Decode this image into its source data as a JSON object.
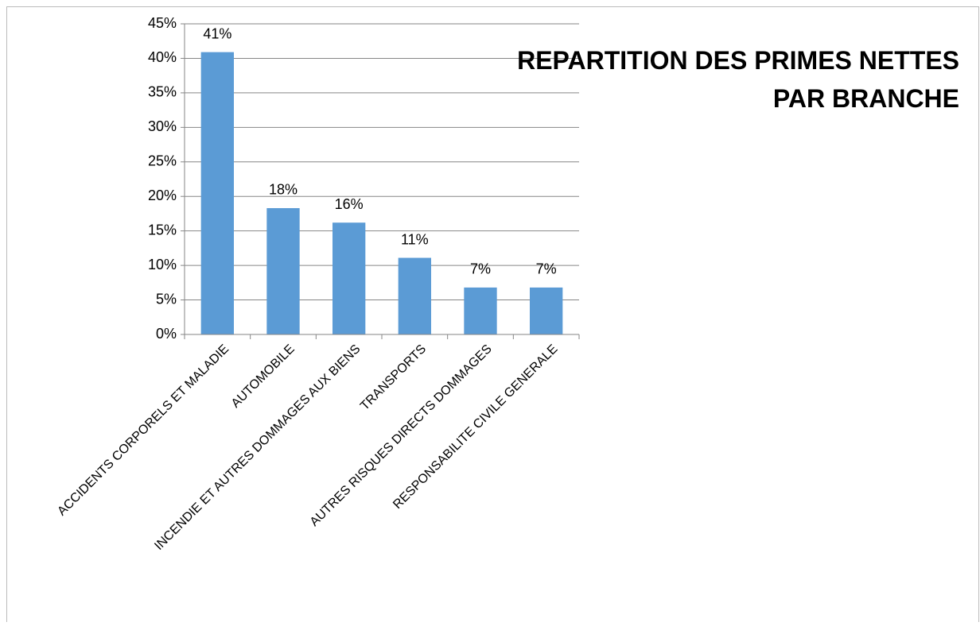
{
  "chart_data": {
    "type": "bar",
    "title": "REPARTITION DES PRIMES NETTES\nPAR BRANCHE",
    "categories": [
      "ACCIDENTS CORPORELS ET MALADIE",
      "AUTOMOBILE",
      "INCENDIE ET AUTRES DOMMAGES AUX BIENS",
      "TRANSPORTS",
      "AUTRES RISQUES DIRECTS DOMMAGES",
      "RESPONSABILITE CIVILE GENERALE"
    ],
    "values": [
      40.9,
      18.3,
      16.2,
      11.1,
      6.8,
      6.8
    ],
    "value_labels": [
      "41%",
      "18%",
      "16%",
      "11%",
      "7%",
      "7%"
    ],
    "color": "#5b9bd5",
    "ylim": [
      0,
      45
    ],
    "yticks": [
      {
        "value": 0,
        "label": "0%"
      },
      {
        "value": 5,
        "label": "5%"
      },
      {
        "value": 10,
        "label": "10%"
      },
      {
        "value": 15,
        "label": "15%"
      },
      {
        "value": 20,
        "label": "20%"
      },
      {
        "value": 25,
        "label": "25%"
      },
      {
        "value": 30,
        "label": "30%"
      },
      {
        "value": 35,
        "label": "35%"
      },
      {
        "value": 40,
        "label": "40%"
      },
      {
        "value": 45,
        "label": "45%"
      }
    ],
    "grid": true
  }
}
